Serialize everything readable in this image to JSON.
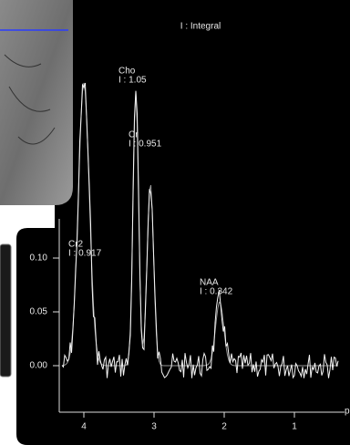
{
  "plot": {
    "title": "I : Integral",
    "yticks": [
      {
        "value": 0.1,
        "label": "0.10"
      },
      {
        "value": 0.05,
        "label": "0.05"
      },
      {
        "value": 0,
        "label": "0.00"
      }
    ],
    "xticks": [
      4,
      3,
      2,
      1
    ],
    "x_label": "p",
    "peaks": [
      {
        "name": "Cho",
        "integral": "I : 1.05"
      },
      {
        "name": "Cr",
        "integral": "I : 0.951"
      },
      {
        "name": "Cr2",
        "integral": "I : 0.917"
      },
      {
        "name": "NAA",
        "integral": "I : 0.342"
      }
    ]
  }
}
